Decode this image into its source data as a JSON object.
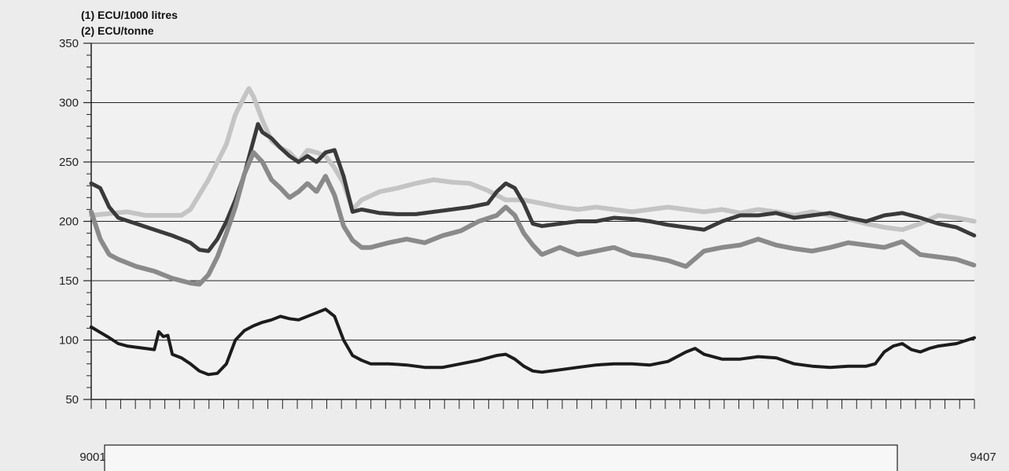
{
  "chart_data": {
    "type": "line",
    "units": [
      "(1) ECU/1000 litres",
      "(2) ECU/tonne"
    ],
    "x_labels": {
      "start": "9001",
      "end": "9407"
    },
    "ylim": [
      50,
      350
    ],
    "y_ticks": [
      "50",
      "100",
      "150",
      "200",
      "250",
      "300",
      "350"
    ],
    "grid": true,
    "x_minor_ticks": 60,
    "series": [
      {
        "color": "#c4c4c4",
        "style": "light-textured",
        "values": [
          [
            0,
            205
          ],
          [
            4,
            208
          ],
          [
            6,
            205
          ],
          [
            10,
            205
          ],
          [
            11,
            210
          ],
          [
            13,
            235
          ],
          [
            15,
            265
          ],
          [
            16,
            290
          ],
          [
            17,
            305
          ],
          [
            17.5,
            312
          ],
          [
            18,
            305
          ],
          [
            19,
            285
          ],
          [
            20,
            268
          ],
          [
            21,
            262
          ],
          [
            22,
            258
          ],
          [
            23,
            250
          ],
          [
            24,
            260
          ],
          [
            25,
            258
          ],
          [
            26,
            255
          ],
          [
            27,
            245
          ],
          [
            28,
            232
          ],
          [
            29,
            210
          ],
          [
            30,
            218
          ],
          [
            32,
            225
          ],
          [
            34,
            228
          ],
          [
            36,
            232
          ],
          [
            38,
            235
          ],
          [
            40,
            233
          ],
          [
            42,
            232
          ],
          [
            44,
            226
          ],
          [
            46,
            218
          ],
          [
            48,
            218
          ],
          [
            50,
            215
          ],
          [
            52,
            212
          ],
          [
            54,
            210
          ],
          [
            56,
            212
          ],
          [
            58,
            210
          ],
          [
            60,
            208
          ],
          [
            62,
            210
          ],
          [
            64,
            212
          ],
          [
            66,
            210
          ],
          [
            68,
            208
          ],
          [
            70,
            210
          ],
          [
            72,
            207
          ],
          [
            74,
            210
          ],
          [
            76,
            208
          ],
          [
            78,
            205
          ],
          [
            80,
            208
          ],
          [
            82,
            205
          ],
          [
            84,
            202
          ],
          [
            86,
            198
          ],
          [
            88,
            195
          ],
          [
            90,
            193
          ],
          [
            92,
            198
          ],
          [
            94,
            205
          ],
          [
            96,
            203
          ],
          [
            98,
            200
          ]
        ]
      },
      {
        "color": "#3a3a3a",
        "style": "dark-textured",
        "values": [
          [
            0,
            232
          ],
          [
            1,
            228
          ],
          [
            2,
            212
          ],
          [
            3,
            203
          ],
          [
            5,
            198
          ],
          [
            7,
            193
          ],
          [
            9,
            188
          ],
          [
            10,
            185
          ],
          [
            11,
            182
          ],
          [
            12,
            176
          ],
          [
            13,
            175
          ],
          [
            14,
            185
          ],
          [
            15,
            200
          ],
          [
            16,
            218
          ],
          [
            17,
            240
          ],
          [
            18,
            268
          ],
          [
            18.5,
            282
          ],
          [
            19,
            275
          ],
          [
            20,
            270
          ],
          [
            21,
            262
          ],
          [
            22,
            255
          ],
          [
            23,
            250
          ],
          [
            24,
            255
          ],
          [
            25,
            250
          ],
          [
            26,
            258
          ],
          [
            27,
            260
          ],
          [
            28,
            238
          ],
          [
            29,
            208
          ],
          [
            30,
            210
          ],
          [
            32,
            207
          ],
          [
            34,
            206
          ],
          [
            36,
            206
          ],
          [
            38,
            208
          ],
          [
            40,
            210
          ],
          [
            42,
            212
          ],
          [
            44,
            215
          ],
          [
            45,
            225
          ],
          [
            46,
            232
          ],
          [
            47,
            228
          ],
          [
            48,
            215
          ],
          [
            49,
            198
          ],
          [
            50,
            196
          ],
          [
            52,
            198
          ],
          [
            54,
            200
          ],
          [
            56,
            200
          ],
          [
            58,
            203
          ],
          [
            60,
            202
          ],
          [
            62,
            200
          ],
          [
            64,
            197
          ],
          [
            66,
            195
          ],
          [
            68,
            193
          ],
          [
            70,
            200
          ],
          [
            72,
            205
          ],
          [
            74,
            205
          ],
          [
            76,
            207
          ],
          [
            78,
            203
          ],
          [
            80,
            205
          ],
          [
            82,
            207
          ],
          [
            84,
            203
          ],
          [
            86,
            200
          ],
          [
            88,
            205
          ],
          [
            90,
            207
          ],
          [
            92,
            203
          ],
          [
            94,
            198
          ],
          [
            96,
            195
          ],
          [
            98,
            188
          ]
        ]
      },
      {
        "color": "#8a8a8a",
        "style": "medium-textured",
        "values": [
          [
            0,
            208
          ],
          [
            1,
            185
          ],
          [
            2,
            172
          ],
          [
            3,
            168
          ],
          [
            5,
            162
          ],
          [
            7,
            158
          ],
          [
            9,
            152
          ],
          [
            11,
            148
          ],
          [
            12,
            147
          ],
          [
            13,
            155
          ],
          [
            14,
            170
          ],
          [
            15,
            190
          ],
          [
            16,
            212
          ],
          [
            17,
            240
          ],
          [
            18,
            258
          ],
          [
            19,
            250
          ],
          [
            20,
            235
          ],
          [
            21,
            228
          ],
          [
            22,
            220
          ],
          [
            23,
            225
          ],
          [
            24,
            232
          ],
          [
            25,
            225
          ],
          [
            26,
            238
          ],
          [
            27,
            222
          ],
          [
            28,
            196
          ],
          [
            29,
            184
          ],
          [
            30,
            178
          ],
          [
            31,
            178
          ],
          [
            33,
            182
          ],
          [
            35,
            185
          ],
          [
            37,
            182
          ],
          [
            39,
            188
          ],
          [
            41,
            192
          ],
          [
            43,
            200
          ],
          [
            45,
            205
          ],
          [
            46,
            212
          ],
          [
            47,
            205
          ],
          [
            48,
            190
          ],
          [
            49,
            180
          ],
          [
            50,
            172
          ],
          [
            52,
            178
          ],
          [
            54,
            172
          ],
          [
            56,
            175
          ],
          [
            58,
            178
          ],
          [
            60,
            172
          ],
          [
            62,
            170
          ],
          [
            64,
            167
          ],
          [
            66,
            162
          ],
          [
            68,
            175
          ],
          [
            70,
            178
          ],
          [
            72,
            180
          ],
          [
            74,
            185
          ],
          [
            76,
            180
          ],
          [
            78,
            177
          ],
          [
            80,
            175
          ],
          [
            82,
            178
          ],
          [
            84,
            182
          ],
          [
            86,
            180
          ],
          [
            88,
            178
          ],
          [
            90,
            183
          ],
          [
            92,
            172
          ],
          [
            94,
            170
          ],
          [
            96,
            168
          ],
          [
            98,
            163
          ]
        ]
      },
      {
        "color": "#1c1c1c",
        "style": "solid-thick",
        "values": [
          [
            0,
            111
          ],
          [
            2,
            102
          ],
          [
            3,
            97
          ],
          [
            4,
            95
          ],
          [
            5,
            94
          ],
          [
            6,
            93
          ],
          [
            7,
            92
          ],
          [
            7.5,
            107
          ],
          [
            8,
            103
          ],
          [
            8.5,
            104
          ],
          [
            9,
            88
          ],
          [
            10,
            85
          ],
          [
            11,
            80
          ],
          [
            12,
            74
          ],
          [
            13,
            71
          ],
          [
            14,
            72
          ],
          [
            15,
            80
          ],
          [
            16,
            100
          ],
          [
            17,
            108
          ],
          [
            18,
            112
          ],
          [
            19,
            115
          ],
          [
            20,
            117
          ],
          [
            21,
            120
          ],
          [
            22,
            118
          ],
          [
            23,
            117
          ],
          [
            24,
            120
          ],
          [
            25,
            123
          ],
          [
            26,
            126
          ],
          [
            27,
            120
          ],
          [
            28,
            100
          ],
          [
            29,
            87
          ],
          [
            30,
            83
          ],
          [
            31,
            80
          ],
          [
            33,
            80
          ],
          [
            35,
            79
          ],
          [
            37,
            77
          ],
          [
            39,
            77
          ],
          [
            41,
            80
          ],
          [
            43,
            83
          ],
          [
            45,
            87
          ],
          [
            46,
            88
          ],
          [
            47,
            84
          ],
          [
            48,
            78
          ],
          [
            49,
            74
          ],
          [
            50,
            73
          ],
          [
            52,
            75
          ],
          [
            54,
            77
          ],
          [
            56,
            79
          ],
          [
            58,
            80
          ],
          [
            60,
            80
          ],
          [
            62,
            79
          ],
          [
            64,
            82
          ],
          [
            66,
            90
          ],
          [
            67,
            93
          ],
          [
            68,
            88
          ],
          [
            70,
            84
          ],
          [
            72,
            84
          ],
          [
            74,
            86
          ],
          [
            76,
            85
          ],
          [
            78,
            80
          ],
          [
            80,
            78
          ],
          [
            82,
            77
          ],
          [
            84,
            78
          ],
          [
            86,
            78
          ],
          [
            87,
            80
          ],
          [
            88,
            90
          ],
          [
            89,
            95
          ],
          [
            90,
            97
          ],
          [
            91,
            92
          ],
          [
            92,
            90
          ],
          [
            93,
            93
          ],
          [
            94,
            95
          ],
          [
            96,
            97
          ],
          [
            98,
            102
          ]
        ]
      }
    ]
  }
}
